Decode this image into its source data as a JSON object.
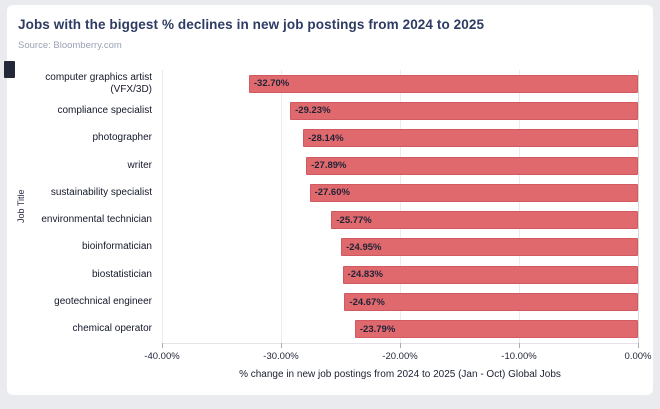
{
  "header": {
    "title": "Jobs with the biggest % declines in new job postings from 2024 to 2025",
    "source": "Source: Bloomberry.com"
  },
  "chart_data": {
    "type": "bar",
    "orientation": "horizontal",
    "title": "Jobs with the biggest % declines in new job postings from 2024 to 2025",
    "xlabel": "% change in new job postings from 2024 to 2025 (Jan - Oct) Global Jobs",
    "ylabel": "Job Title",
    "xlim": [
      -40,
      0
    ],
    "x_tick_labels": [
      "-40.00%",
      "-30.00%",
      "-20.00%",
      "-10.00%",
      "0.00%"
    ],
    "grid": true,
    "legend": false,
    "categories": [
      "computer graphics artist (VFX/3D)",
      "compliance specialist",
      "photographer",
      "writer",
      "sustainability specialist",
      "environmental technician",
      "bioinformatician",
      "biostatistician",
      "geotechnical engineer",
      "chemical operator"
    ],
    "values": [
      -32.7,
      -29.23,
      -28.14,
      -27.89,
      -27.6,
      -25.77,
      -24.95,
      -24.83,
      -24.67,
      -23.79
    ],
    "bar_labels": [
      "-32.70%",
      "-29.23%",
      "-28.14%",
      "-27.89%",
      "-27.60%",
      "-25.77%",
      "-24.95%",
      "-24.83%",
      "-24.67%",
      "-23.79%"
    ]
  },
  "colors": {
    "title_text": "#2e3b63",
    "source_text": "#99a1b3",
    "bar_fill": "#e0696e",
    "bar_border": "#d05a61",
    "page_background": "#e9ebee",
    "card_background": "#ffffff"
  }
}
